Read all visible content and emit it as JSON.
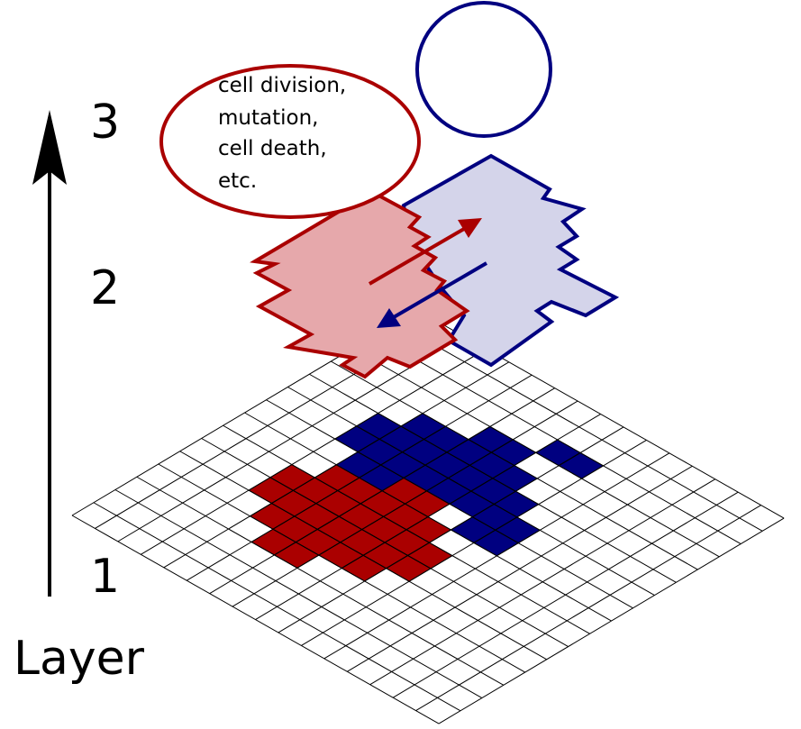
{
  "axis": {
    "title": "Layer",
    "ticks": [
      "3",
      "2",
      "1"
    ]
  },
  "annotation": {
    "lines": [
      "cell division,",
      "mutation,",
      "cell death,",
      "etc."
    ]
  }
}
